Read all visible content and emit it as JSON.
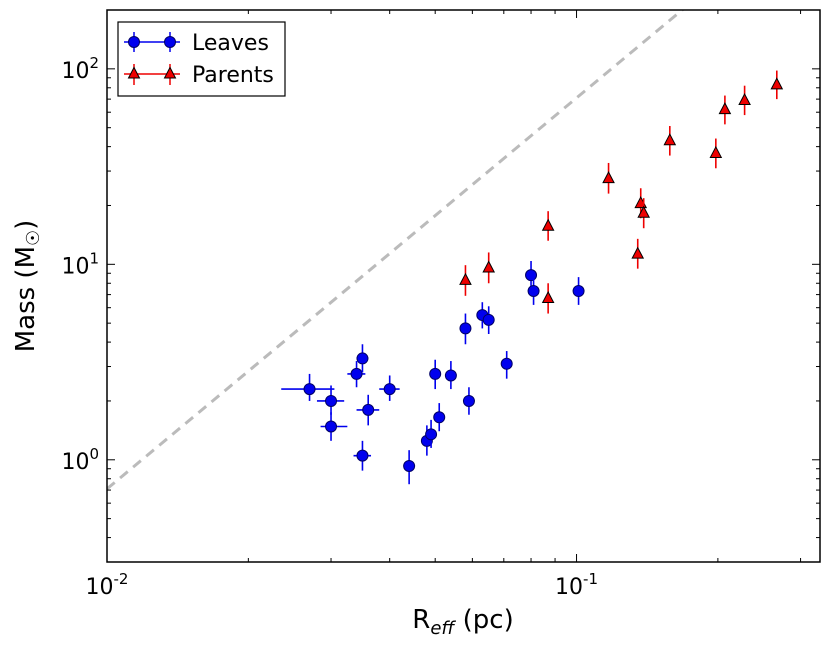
{
  "chart_data": {
    "type": "scatter",
    "title": "",
    "xlabel": "R_eff (pc)",
    "xlabel_main": "R",
    "xlabel_sub": "eff",
    "xlabel_unit": " (pc)",
    "ylabel": "Mass (M☉)",
    "ylabel_main": "Mass (M",
    "ylabel_sym": "☉",
    "ylabel_close": ")",
    "xscale": "log",
    "yscale": "log",
    "xlim": [
      0.01,
      0.33
    ],
    "ylim": [
      0.3,
      200
    ],
    "xticks": [
      {
        "value": 0.01,
        "base": "10",
        "exp": "-2"
      },
      {
        "value": 0.1,
        "base": "10",
        "exp": "-1"
      }
    ],
    "yticks": [
      {
        "value": 1,
        "base": "10",
        "exp": "0"
      },
      {
        "value": 10,
        "base": "10",
        "exp": "1"
      },
      {
        "value": 100,
        "base": "10",
        "exp": "2"
      }
    ],
    "legend_position": "top-left",
    "fit_line": {
      "style": "dashed",
      "color": "#bbbbbb",
      "slope": 2.0,
      "coef": 7100
    },
    "series": [
      {
        "name": "Leaves",
        "marker": "circle",
        "color": "#0000ee",
        "edge": "#000066",
        "points": [
          {
            "x": 0.027,
            "y": 2.3,
            "xlo": 0.0235,
            "xhi": 0.0305,
            "ylo": 2.0,
            "yhi": 2.75
          },
          {
            "x": 0.03,
            "y": 2.0,
            "xlo": 0.028,
            "xhi": 0.032,
            "ylo": 1.7,
            "yhi": 2.4
          },
          {
            "x": 0.03,
            "y": 1.48,
            "xlo": 0.0285,
            "xhi": 0.0325,
            "ylo": 1.25,
            "yhi": 1.75
          },
          {
            "x": 0.034,
            "y": 2.75,
            "xlo": 0.0325,
            "xhi": 0.0355,
            "ylo": 2.35,
            "yhi": 3.2
          },
          {
            "x": 0.035,
            "y": 3.3,
            "xlo": 0.034,
            "xhi": 0.036,
            "ylo": 2.8,
            "yhi": 3.9
          },
          {
            "x": 0.036,
            "y": 1.8,
            "xlo": 0.034,
            "xhi": 0.038,
            "ylo": 1.5,
            "yhi": 2.15
          },
          {
            "x": 0.035,
            "y": 1.05,
            "xlo": 0.0335,
            "xhi": 0.0365,
            "ylo": 0.88,
            "yhi": 1.25
          },
          {
            "x": 0.04,
            "y": 2.3,
            "xlo": 0.038,
            "xhi": 0.042,
            "ylo": 2.0,
            "yhi": 2.7
          },
          {
            "x": 0.044,
            "y": 0.93,
            "xlo": 0.043,
            "xhi": 0.045,
            "ylo": 0.75,
            "yhi": 1.12
          },
          {
            "x": 0.048,
            "y": 1.25,
            "xlo": 0.047,
            "xhi": 0.049,
            "ylo": 1.05,
            "yhi": 1.5
          },
          {
            "x": 0.049,
            "y": 1.35,
            "xlo": 0.048,
            "xhi": 0.05,
            "ylo": 1.15,
            "yhi": 1.6
          },
          {
            "x": 0.051,
            "y": 1.65,
            "ylo": 1.4,
            "yhi": 1.95
          },
          {
            "x": 0.05,
            "y": 2.75,
            "ylo": 2.3,
            "yhi": 3.25
          },
          {
            "x": 0.054,
            "y": 2.7,
            "ylo": 2.3,
            "yhi": 3.2
          },
          {
            "x": 0.059,
            "y": 2.0,
            "ylo": 1.7,
            "yhi": 2.35
          },
          {
            "x": 0.058,
            "y": 4.7,
            "ylo": 3.9,
            "yhi": 5.6
          },
          {
            "x": 0.063,
            "y": 5.5,
            "ylo": 4.7,
            "yhi": 6.4
          },
          {
            "x": 0.065,
            "y": 5.2,
            "ylo": 4.4,
            "yhi": 6.1
          },
          {
            "x": 0.071,
            "y": 3.1,
            "ylo": 2.6,
            "yhi": 3.6
          },
          {
            "x": 0.08,
            "y": 8.8,
            "ylo": 7.5,
            "yhi": 10.4
          },
          {
            "x": 0.081,
            "y": 7.3,
            "ylo": 6.2,
            "yhi": 8.6
          },
          {
            "x": 0.101,
            "y": 7.3,
            "ylo": 6.2,
            "yhi": 8.6
          }
        ]
      },
      {
        "name": "Parents",
        "marker": "triangle",
        "color": "#ee0000",
        "edge": "#000000",
        "points": [
          {
            "x": 0.058,
            "y": 8.3,
            "ylo": 6.9,
            "yhi": 9.9
          },
          {
            "x": 0.065,
            "y": 9.6,
            "ylo": 8.0,
            "yhi": 11.5
          },
          {
            "x": 0.087,
            "y": 6.7,
            "ylo": 5.6,
            "yhi": 8.0
          },
          {
            "x": 0.087,
            "y": 15.7,
            "ylo": 13.2,
            "yhi": 18.7
          },
          {
            "x": 0.117,
            "y": 27.5,
            "ylo": 23.0,
            "yhi": 33.0
          },
          {
            "x": 0.135,
            "y": 11.3,
            "ylo": 9.5,
            "yhi": 13.5
          },
          {
            "x": 0.137,
            "y": 20.5,
            "ylo": 17.2,
            "yhi": 24.5
          },
          {
            "x": 0.139,
            "y": 18.3,
            "ylo": 15.3,
            "yhi": 21.8
          },
          {
            "x": 0.158,
            "y": 43.0,
            "ylo": 36.0,
            "yhi": 51.0
          },
          {
            "x": 0.198,
            "y": 37.0,
            "ylo": 31.0,
            "yhi": 44.0
          },
          {
            "x": 0.207,
            "y": 62.0,
            "ylo": 52.0,
            "yhi": 73.0
          },
          {
            "x": 0.228,
            "y": 69.0,
            "ylo": 58.0,
            "yhi": 82.0
          },
          {
            "x": 0.267,
            "y": 83.0,
            "ylo": 70.0,
            "yhi": 98.0
          }
        ]
      }
    ]
  }
}
